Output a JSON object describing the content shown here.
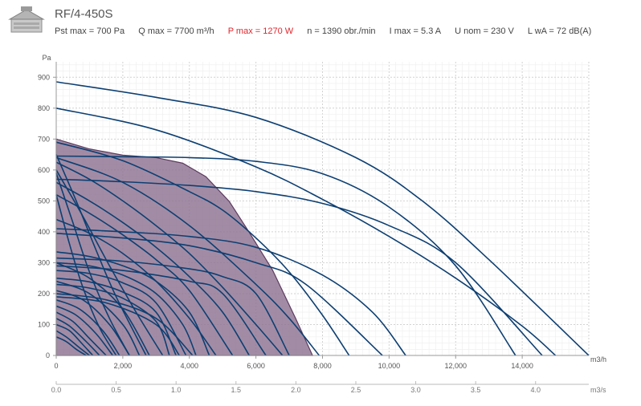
{
  "header": {
    "title": "RF/4-450S",
    "product_image_icon": "roof-fan-icon",
    "specs": [
      {
        "label": "Pst max = 700 Pa",
        "color": "#444444"
      },
      {
        "label": "Q max = 7700 m³/h",
        "color": "#444444"
      },
      {
        "label": "P max = 1270 W",
        "color": "#e0262c"
      },
      {
        "label": "n = 1390 obr./min",
        "color": "#444444"
      },
      {
        "label": "I max = 5.3 A",
        "color": "#444444"
      },
      {
        "label": "U nom = 230 V",
        "color": "#444444"
      },
      {
        "label": "L wA = 72 dB(A)",
        "color": "#444444"
      }
    ]
  },
  "chart_data": {
    "type": "line",
    "ylabel": "Pa",
    "xlabel": "m3/h",
    "x2label": "m3/s",
    "xlim": [
      0,
      16000
    ],
    "ylim": [
      0,
      950
    ],
    "x2lim": [
      0,
      4.444
    ],
    "yticks": [
      0,
      100,
      200,
      300,
      400,
      500,
      600,
      700,
      800,
      900
    ],
    "xticks": [
      0,
      2000,
      4000,
      6000,
      8000,
      10000,
      12000,
      14000
    ],
    "xtick_labels": [
      "0",
      "2,000",
      "4,000",
      "6,000",
      "8,000",
      "10,000",
      "12,000",
      "14,000"
    ],
    "x2ticks": [
      0.0,
      0.5,
      1.0,
      1.5,
      2.0,
      2.5,
      3.0,
      3.5,
      4.0
    ],
    "x2tick_labels": [
      "0.0",
      "0.5",
      "1.0",
      "1.5",
      "2.0",
      "2.5",
      "3.0",
      "3.5",
      "4.0"
    ],
    "grid": true,
    "line_color": "#0d3f72",
    "area_fill": "#8e7391",
    "area_edge": "#5c3a5e",
    "highlight_area": {
      "x": [
        0,
        1000,
        2000,
        3000,
        3800,
        4500,
        5200,
        5800,
        6500,
        7200,
        7700
      ],
      "y": [
        700,
        668,
        648,
        640,
        622,
        578,
        498,
        398,
        276,
        118,
        0
      ]
    },
    "series": [
      {
        "x": [
          0,
          3000,
          6000,
          9000,
          11000,
          13000,
          16000
        ],
        "y": [
          885,
          835,
          770,
          640,
          500,
          310,
          0
        ]
      },
      {
        "x": [
          0,
          3000,
          6000,
          8000,
          10000,
          12000,
          14000,
          15000
        ],
        "y": [
          800,
          730,
          610,
          505,
          385,
          250,
          95,
          0
        ]
      },
      {
        "x": [
          0,
          2000,
          4000,
          6000,
          8000,
          10000,
          12000,
          13800
        ],
        "y": [
          645,
          643,
          640,
          628,
          588,
          480,
          290,
          0
        ]
      },
      {
        "x": [
          0,
          2000,
          4000,
          6000,
          8000,
          10000,
          12000,
          14600
        ],
        "y": [
          570,
          562,
          550,
          530,
          492,
          420,
          300,
          0
        ]
      },
      {
        "x": [
          0,
          2000,
          4000,
          6000,
          8000,
          9500,
          10500
        ],
        "y": [
          410,
          400,
          385,
          350,
          260,
          140,
          0
        ]
      },
      {
        "x": [
          0,
          2000,
          4000,
          6000,
          7500,
          9800
        ],
        "y": [
          395,
          380,
          355,
          300,
          230,
          0
        ]
      },
      {
        "x": [
          0,
          2000,
          4000,
          5000,
          6000,
          7000,
          8000,
          8800
        ],
        "y": [
          690,
          630,
          530,
          470,
          380,
          270,
          130,
          0
        ]
      },
      {
        "x": [
          0,
          2000,
          4000,
          6000,
          7000,
          7900
        ],
        "y": [
          640,
          560,
          420,
          230,
          120,
          0
        ]
      },
      {
        "x": [
          0,
          1000,
          2000,
          3000,
          4000,
          5000,
          6000,
          6800
        ],
        "y": [
          625,
          570,
          500,
          420,
          330,
          220,
          100,
          0
        ]
      },
      {
        "x": [
          0,
          1000,
          2000,
          3000,
          4000,
          5000,
          5800
        ],
        "y": [
          560,
          500,
          430,
          350,
          255,
          140,
          0
        ]
      },
      {
        "x": [
          0,
          1000,
          2000,
          3000,
          4000,
          5300
        ],
        "y": [
          520,
          460,
          390,
          310,
          210,
          0
        ]
      },
      {
        "x": [
          0,
          2000,
          4000,
          5000,
          6000,
          7000
        ],
        "y": [
          315,
          305,
          280,
          255,
          200,
          0
        ]
      },
      {
        "x": [
          0,
          2000,
          4000,
          5000,
          6300
        ],
        "y": [
          290,
          275,
          240,
          200,
          0
        ]
      },
      {
        "x": [
          0,
          1000,
          2000,
          3000,
          4000,
          4800
        ],
        "y": [
          440,
          395,
          330,
          240,
          120,
          0
        ]
      },
      {
        "x": [
          0,
          1000,
          2000,
          3000,
          4000,
          4600
        ],
        "y": [
          335,
          320,
          290,
          240,
          140,
          0
        ]
      },
      {
        "x": [
          0,
          1000,
          2000,
          3000,
          3800,
          4200
        ],
        "y": [
          300,
          290,
          260,
          200,
          100,
          0
        ]
      },
      {
        "x": [
          0,
          1000,
          2000,
          3000,
          3900
        ],
        "y": [
          275,
          265,
          235,
          170,
          0
        ]
      },
      {
        "x": [
          0,
          1000,
          2000,
          3000,
          3600
        ],
        "y": [
          250,
          238,
          205,
          140,
          0
        ]
      },
      {
        "x": [
          0,
          1000,
          2000,
          3000,
          3400
        ],
        "y": [
          230,
          218,
          185,
          110,
          0
        ]
      },
      {
        "x": [
          0,
          800,
          1600,
          2400,
          3200
        ],
        "y": [
          600,
          450,
          290,
          140,
          0
        ]
      },
      {
        "x": [
          0,
          600,
          1200,
          1800,
          2700
        ],
        "y": [
          650,
          500,
          340,
          190,
          0
        ]
      },
      {
        "x": [
          0,
          500,
          1000,
          1600,
          2200
        ],
        "y": [
          590,
          430,
          270,
          120,
          0
        ]
      },
      {
        "x": [
          0,
          400,
          800,
          1300,
          1800
        ],
        "y": [
          520,
          360,
          220,
          90,
          0
        ]
      },
      {
        "x": [
          0,
          1000,
          2000,
          2800
        ],
        "y": [
          300,
          250,
          150,
          0
        ]
      },
      {
        "x": [
          0,
          1000,
          2000,
          2500
        ],
        "y": [
          240,
          200,
          100,
          0
        ]
      },
      {
        "x": [
          0,
          800,
          1600,
          2200
        ],
        "y": [
          210,
          180,
          100,
          0
        ]
      },
      {
        "x": [
          0,
          700,
          1400,
          1900
        ],
        "y": [
          180,
          150,
          80,
          0
        ]
      },
      {
        "x": [
          0,
          600,
          1200,
          1700
        ],
        "y": [
          160,
          130,
          70,
          0
        ]
      },
      {
        "x": [
          0,
          500,
          1000,
          1500
        ],
        "y": [
          140,
          110,
          55,
          0
        ]
      },
      {
        "x": [
          0,
          400,
          900,
          1300
        ],
        "y": [
          120,
          95,
          45,
          0
        ]
      },
      {
        "x": [
          0,
          400,
          800,
          1100
        ],
        "y": [
          100,
          80,
          35,
          0
        ]
      },
      {
        "x": [
          0,
          300,
          700,
          1000
        ],
        "y": [
          80,
          60,
          25,
          0
        ]
      },
      {
        "x": [
          0,
          300,
          600,
          900
        ],
        "y": [
          60,
          45,
          20,
          0
        ]
      },
      {
        "x": [
          0,
          1500,
          3000,
          4100
        ],
        "y": [
          200,
          180,
          120,
          0
        ]
      },
      {
        "x": [
          0,
          1500,
          3000,
          3700
        ],
        "y": [
          190,
          170,
          100,
          0
        ]
      }
    ]
  }
}
